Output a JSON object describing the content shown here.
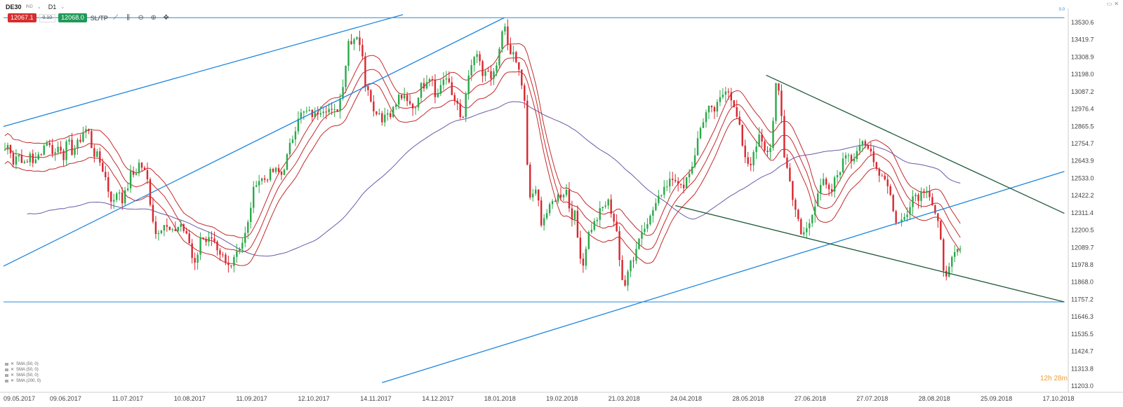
{
  "header": {
    "symbol": "DE30",
    "symbol_sub": "IND",
    "timeframe": "D1",
    "sell_price": "12067.1",
    "volume": "0.10",
    "buy_price": "12068.0",
    "sltp": "SL/TP",
    "top_right_tag": "0.0"
  },
  "countdown": "12h 28m",
  "legend": [
    "SMA (50, 0)",
    "SMA (50, 0)",
    "SMA (50, 0)",
    "SMA (200, 0)"
  ],
  "colors": {
    "bull": "#2aa84a",
    "bear": "#d9262f",
    "sma": "#c22a2a",
    "sma200": "#6a5aa8",
    "trend_blue": "#1e86de",
    "trend_green": "#1f5a3a",
    "hline": "#2b8ad8"
  },
  "chart_data": {
    "type": "candlestick",
    "instrument": "DE30",
    "timeframe": "D1",
    "x_tick_labels": [
      "09.05.2017",
      "09.06.2017",
      "11.07.2017",
      "10.08.2017",
      "11.09.2017",
      "12.10.2017",
      "14.11.2017",
      "14.12.2017",
      "18.01.2018",
      "19.02.2018",
      "21.03.2018",
      "24.04.2018",
      "28.05.2018",
      "27.06.2018",
      "27.07.2018",
      "28.08.2018",
      "25.09.2018",
      "17.10.2018"
    ],
    "y_tick_labels": [
      "13530.6",
      "13419.7",
      "13308.9",
      "13198.0",
      "13087.2",
      "12976.4",
      "12865.5",
      "12754.7",
      "12643.9",
      "12533.0",
      "12422.2",
      "12311.4",
      "12200.5",
      "12089.7",
      "11978.8",
      "11868.0",
      "11757.2",
      "11646.3",
      "11535.5",
      "11424.7",
      "11313.8",
      "11203.0"
    ],
    "ylim": [
      11203.0,
      13530.6
    ],
    "close_series": [
      [
        0,
        12720
      ],
      [
        6,
        12760
      ],
      [
        12,
        12640
      ],
      [
        18,
        12700
      ],
      [
        24,
        12660
      ],
      [
        30,
        12600
      ],
      [
        36,
        12700
      ],
      [
        42,
        12620
      ],
      [
        48,
        12680
      ],
      [
        54,
        12730
      ],
      [
        60,
        12780
      ],
      [
        66,
        12720
      ],
      [
        72,
        12700
      ],
      [
        78,
        12760
      ],
      [
        84,
        12680
      ],
      [
        90,
        12780
      ],
      [
        96,
        12710
      ],
      [
        102,
        12740
      ],
      [
        108,
        12790
      ],
      [
        114,
        12860
      ],
      [
        120,
        12830
      ],
      [
        126,
        12700
      ],
      [
        132,
        12680
      ],
      [
        138,
        12620
      ],
      [
        144,
        12540
      ],
      [
        150,
        12420
      ],
      [
        156,
        12380
      ],
      [
        162,
        12480
      ],
      [
        168,
        12400
      ],
      [
        174,
        12450
      ],
      [
        180,
        12560
      ],
      [
        186,
        12560
      ],
      [
        192,
        12630
      ],
      [
        198,
        12600
      ],
      [
        204,
        12520
      ],
      [
        210,
        12320
      ],
      [
        216,
        12180
      ],
      [
        222,
        12220
      ],
      [
        228,
        12240
      ],
      [
        234,
        12200
      ],
      [
        240,
        12180
      ],
      [
        246,
        12220
      ],
      [
        252,
        12240
      ],
      [
        258,
        12180
      ],
      [
        264,
        12120
      ],
      [
        270,
        11980
      ],
      [
        276,
        12060
      ],
      [
        282,
        12180
      ],
      [
        288,
        12140
      ],
      [
        294,
        12140
      ],
      [
        300,
        12100
      ],
      [
        306,
        12020
      ],
      [
        312,
        12030
      ],
      [
        318,
        11960
      ],
      [
        324,
        12000
      ],
      [
        330,
        12060
      ],
      [
        336,
        12100
      ],
      [
        342,
        12140
      ],
      [
        348,
        12240
      ],
      [
        354,
        12420
      ],
      [
        360,
        12520
      ],
      [
        366,
        12530
      ],
      [
        372,
        12530
      ],
      [
        378,
        12560
      ],
      [
        384,
        12580
      ],
      [
        390,
        12580
      ],
      [
        396,
        12560
      ],
      [
        402,
        12640
      ],
      [
        408,
        12740
      ],
      [
        414,
        12830
      ],
      [
        420,
        12940
      ],
      [
        426,
        12950
      ],
      [
        432,
        12960
      ],
      [
        438,
        12950
      ],
      [
        444,
        12940
      ],
      [
        450,
        12980
      ],
      [
        456,
        12990
      ],
      [
        462,
        12990
      ],
      [
        468,
        12960
      ],
      [
        474,
        12960
      ],
      [
        480,
        13050
      ],
      [
        486,
        13200
      ],
      [
        492,
        13420
      ],
      [
        498,
        13430
      ],
      [
        504,
        13460
      ],
      [
        510,
        13380
      ],
      [
        516,
        13150
      ],
      [
        522,
        13110
      ],
      [
        528,
        12960
      ],
      [
        534,
        12980
      ],
      [
        540,
        12920
      ],
      [
        546,
        12960
      ],
      [
        552,
        12960
      ],
      [
        558,
        12990
      ],
      [
        564,
        13060
      ],
      [
        570,
        13060
      ],
      [
        576,
        13020
      ],
      [
        582,
        13000
      ],
      [
        588,
        13000
      ],
      [
        594,
        13120
      ],
      [
        600,
        13140
      ],
      [
        606,
        13200
      ],
      [
        612,
        13180
      ],
      [
        618,
        13040
      ],
      [
        624,
        13140
      ],
      [
        630,
        13200
      ],
      [
        636,
        13130
      ],
      [
        642,
        13040
      ],
      [
        648,
        13040
      ],
      [
        654,
        12840
      ],
      [
        660,
        13080
      ],
      [
        666,
        13220
      ],
      [
        672,
        13320
      ],
      [
        678,
        13300
      ],
      [
        684,
        13200
      ],
      [
        690,
        13240
      ],
      [
        696,
        13160
      ],
      [
        702,
        13220
      ],
      [
        708,
        13340
      ],
      [
        714,
        13540
      ],
      [
        720,
        13400
      ],
      [
        726,
        13340
      ],
      [
        732,
        13280
      ],
      [
        738,
        13200
      ],
      [
        744,
        13020
      ],
      [
        750,
        12400
      ],
      [
        756,
        12440
      ],
      [
        762,
        12440
      ],
      [
        768,
        12260
      ],
      [
        774,
        12300
      ],
      [
        780,
        12340
      ],
      [
        786,
        12400
      ],
      [
        792,
        12420
      ],
      [
        798,
        12440
      ],
      [
        804,
        12460
      ],
      [
        810,
        12300
      ],
      [
        816,
        12300
      ],
      [
        822,
        12080
      ],
      [
        828,
        11980
      ],
      [
        834,
        12160
      ],
      [
        840,
        12220
      ],
      [
        846,
        12260
      ],
      [
        852,
        12320
      ],
      [
        858,
        12360
      ],
      [
        864,
        12380
      ],
      [
        870,
        12300
      ],
      [
        876,
        12200
      ],
      [
        882,
        11880
      ],
      [
        888,
        11870
      ],
      [
        894,
        12000
      ],
      [
        900,
        12020
      ],
      [
        906,
        12120
      ],
      [
        912,
        12200
      ],
      [
        918,
        12260
      ],
      [
        924,
        12280
      ],
      [
        930,
        12360
      ],
      [
        936,
        12400
      ],
      [
        942,
        12480
      ],
      [
        948,
        12500
      ],
      [
        954,
        12560
      ],
      [
        960,
        12540
      ],
      [
        966,
        12460
      ],
      [
        972,
        12500
      ],
      [
        978,
        12560
      ],
      [
        984,
        12620
      ],
      [
        990,
        12740
      ],
      [
        996,
        12860
      ],
      [
        1002,
        12940
      ],
      [
        1008,
        12980
      ],
      [
        1014,
        12960
      ],
      [
        1020,
        13000
      ],
      [
        1026,
        13060
      ],
      [
        1032,
        13120
      ],
      [
        1038,
        13100
      ],
      [
        1044,
        12980
      ],
      [
        1050,
        12900
      ],
      [
        1056,
        12760
      ],
      [
        1062,
        12640
      ],
      [
        1068,
        12640
      ],
      [
        1074,
        12700
      ],
      [
        1080,
        12800
      ],
      [
        1086,
        12740
      ],
      [
        1092,
        12700
      ],
      [
        1098,
        12780
      ],
      [
        1104,
        13120
      ],
      [
        1110,
        13080
      ],
      [
        1116,
        12680
      ],
      [
        1122,
        12560
      ],
      [
        1128,
        12420
      ],
      [
        1134,
        12300
      ],
      [
        1140,
        12160
      ],
      [
        1146,
        12200
      ],
      [
        1152,
        12240
      ],
      [
        1158,
        12340
      ],
      [
        1164,
        12460
      ],
      [
        1170,
        12520
      ],
      [
        1176,
        12480
      ],
      [
        1182,
        12420
      ],
      [
        1188,
        12520
      ],
      [
        1194,
        12580
      ],
      [
        1200,
        12640
      ],
      [
        1206,
        12720
      ],
      [
        1212,
        12660
      ],
      [
        1218,
        12700
      ],
      [
        1224,
        12760
      ],
      [
        1230,
        12740
      ],
      [
        1236,
        12720
      ],
      [
        1242,
        12700
      ],
      [
        1248,
        12600
      ],
      [
        1254,
        12560
      ],
      [
        1260,
        12540
      ],
      [
        1266,
        12480
      ],
      [
        1272,
        12320
      ],
      [
        1278,
        12240
      ],
      [
        1284,
        12260
      ],
      [
        1290,
        12300
      ],
      [
        1296,
        12380
      ],
      [
        1302,
        12440
      ],
      [
        1308,
        12420
      ],
      [
        1314,
        12460
      ],
      [
        1320,
        12480
      ],
      [
        1326,
        12400
      ],
      [
        1332,
        12300
      ],
      [
        1338,
        12200
      ],
      [
        1344,
        11960
      ],
      [
        1350,
        11920
      ],
      [
        1356,
        12000
      ],
      [
        1362,
        12060
      ],
      [
        1368,
        12080
      ]
    ],
    "overlays": [
      "SMA (50, 0)",
      "SMA (50, 0)",
      "SMA (50, 0)",
      "SMA (200, 0)"
    ],
    "grid": false,
    "legend_position": "bottom-left"
  }
}
